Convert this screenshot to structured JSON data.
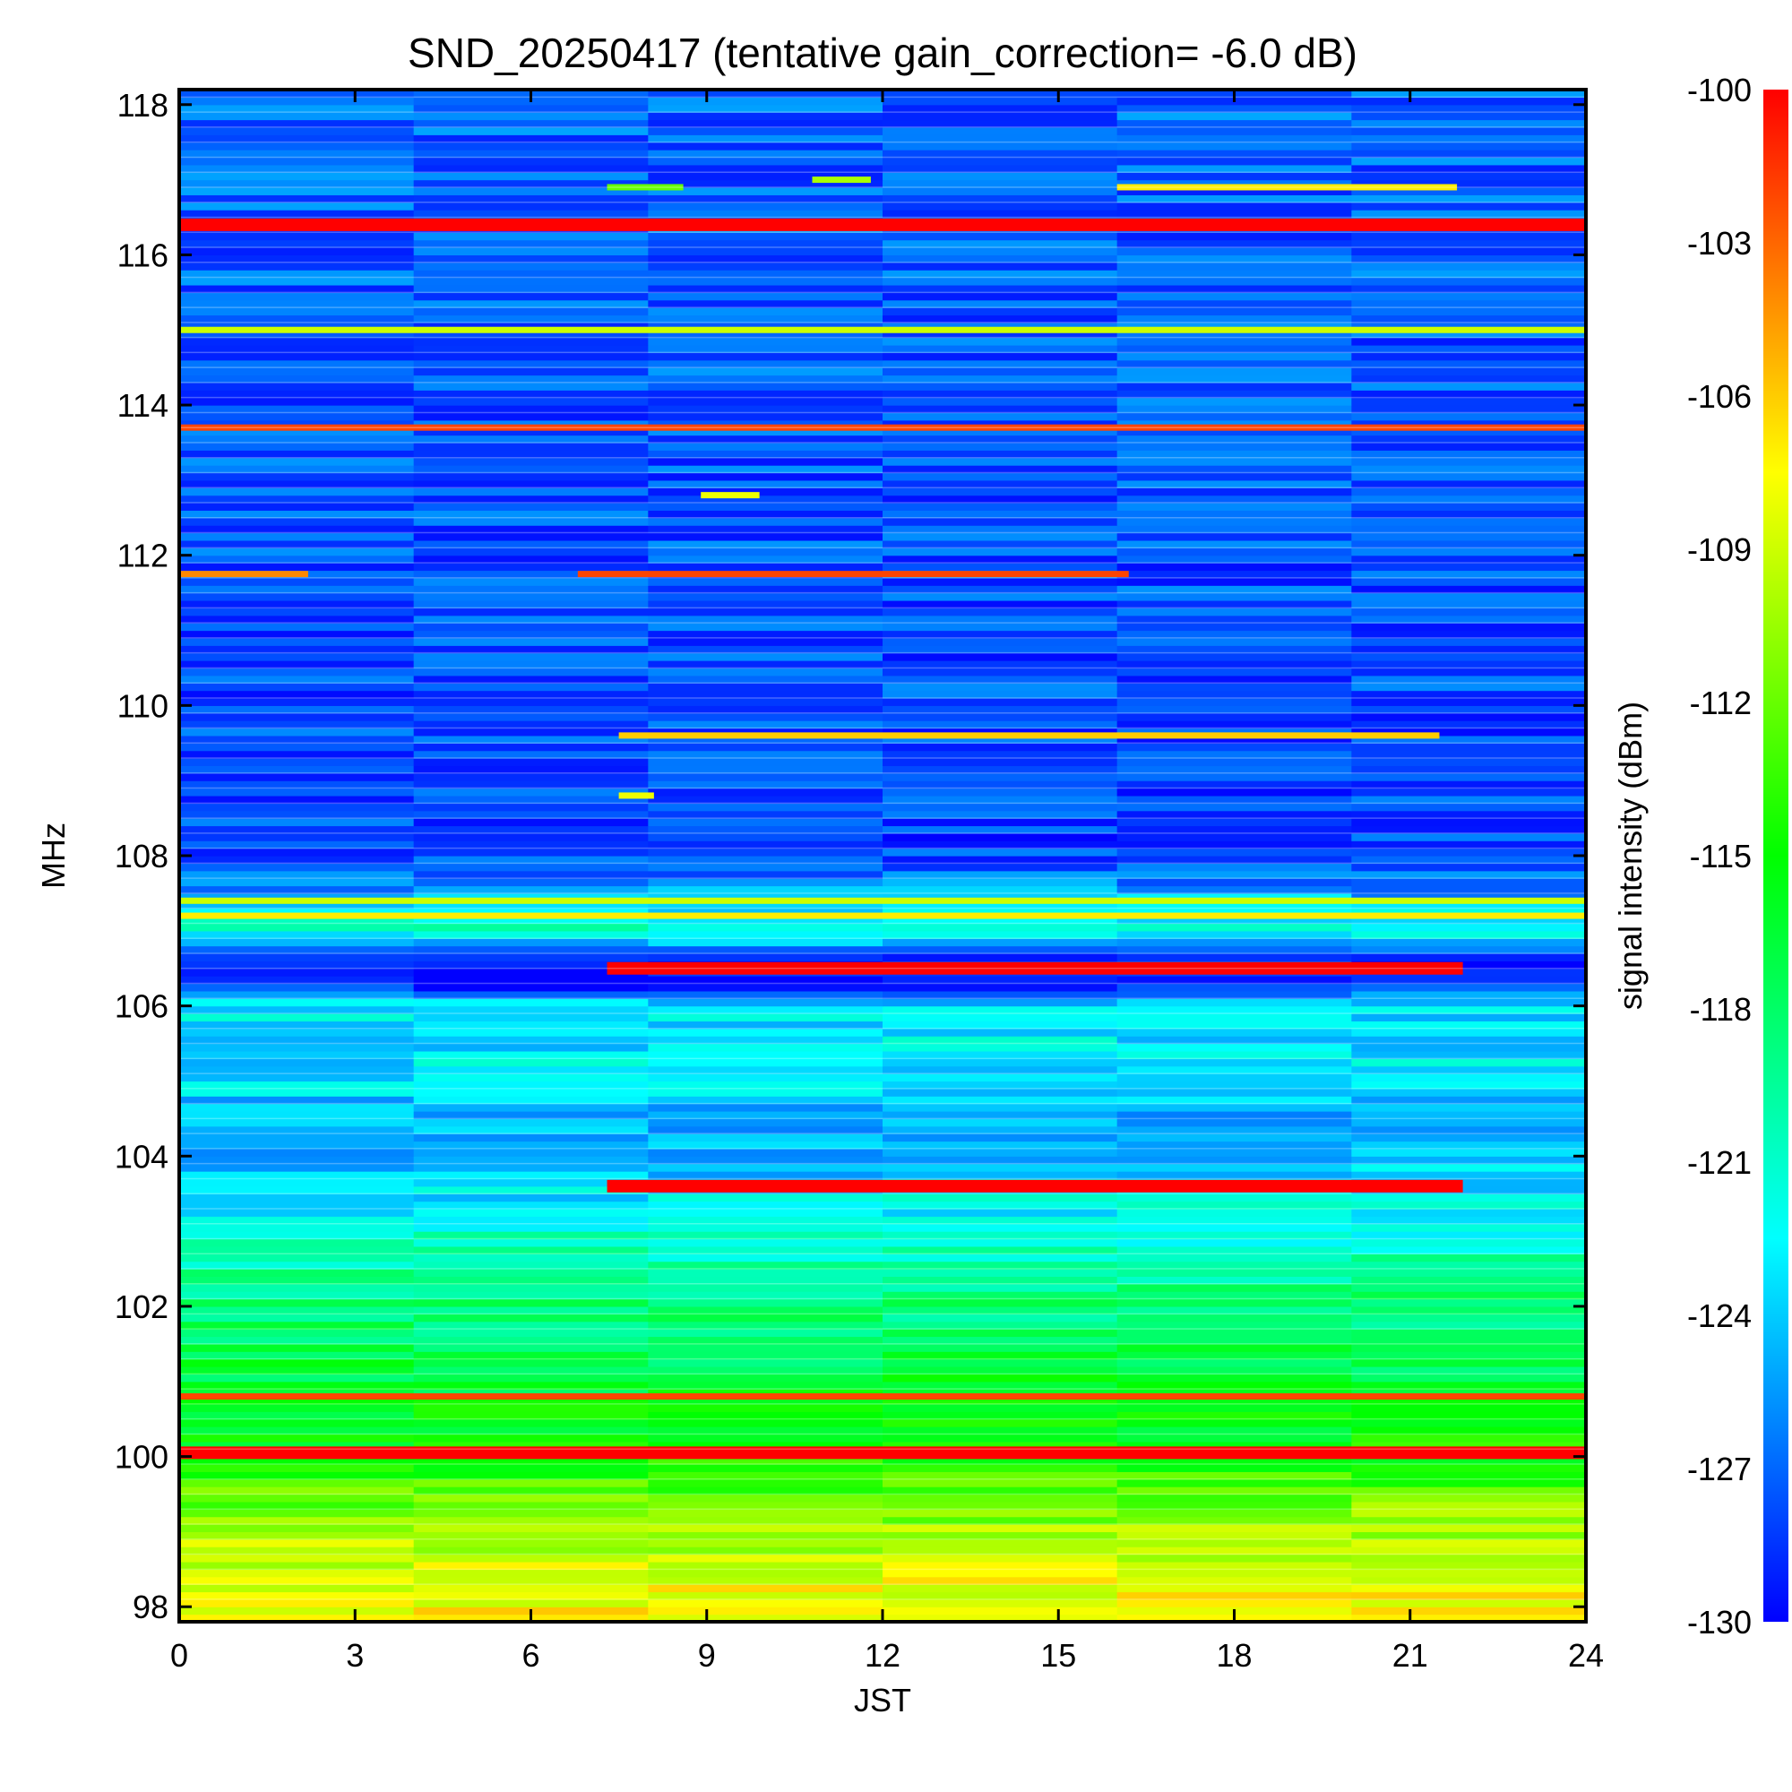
{
  "chart_data": {
    "type": "heatmap",
    "title": "SND_20250417 (tentative gain_correction= -6.0 dB)",
    "xlabel": "JST",
    "ylabel": "MHz",
    "xlim": [
      0,
      24
    ],
    "ylim": [
      97.8,
      118.2
    ],
    "x_ticks": [
      0,
      3,
      6,
      9,
      12,
      15,
      18,
      21,
      24
    ],
    "y_ticks": [
      98,
      100,
      102,
      104,
      106,
      108,
      110,
      112,
      114,
      116,
      118
    ],
    "colorbar": {
      "label": "signal intensity (dBm)",
      "range": [
        -130,
        -100
      ],
      "ticks": [
        -100,
        -103,
        -106,
        -109,
        -112,
        -115,
        -118,
        -121,
        -124,
        -127,
        -130
      ],
      "colormap": [
        "#0000ff",
        "#0080ff",
        "#00ffff",
        "#00ff80",
        "#00ff00",
        "#80ff00",
        "#ffff00",
        "#ff8000",
        "#ff0000"
      ]
    },
    "background_profile": [
      {
        "freq_mhz": 97.8,
        "dbm": -107
      },
      {
        "freq_mhz": 98.6,
        "dbm": -109
      },
      {
        "freq_mhz": 99.2,
        "dbm": -111
      },
      {
        "freq_mhz": 100.2,
        "dbm": -115
      },
      {
        "freq_mhz": 101.2,
        "dbm": -117
      },
      {
        "freq_mhz": 102.2,
        "dbm": -119
      },
      {
        "freq_mhz": 103.2,
        "dbm": -122
      },
      {
        "freq_mhz": 104.2,
        "dbm": -125
      },
      {
        "freq_mhz": 105.2,
        "dbm": -123
      },
      {
        "freq_mhz": 106.0,
        "dbm": -123
      },
      {
        "freq_mhz": 106.3,
        "dbm": -130
      },
      {
        "freq_mhz": 106.6,
        "dbm": -129
      },
      {
        "freq_mhz": 107.0,
        "dbm": -121
      },
      {
        "freq_mhz": 107.6,
        "dbm": -126
      },
      {
        "freq_mhz": 108.1,
        "dbm": -128
      },
      {
        "freq_mhz": 118.2,
        "dbm": -127
      }
    ],
    "signals": [
      {
        "freq_mhz": 116.4,
        "start_jst": 0,
        "end_jst": 24,
        "dbm": -100
      },
      {
        "freq_mhz": 115.0,
        "start_jst": 0,
        "end_jst": 24,
        "dbm": -109
      },
      {
        "freq_mhz": 113.7,
        "start_jst": 0,
        "end_jst": 24,
        "dbm": -102
      },
      {
        "freq_mhz": 116.9,
        "start_jst": 16,
        "end_jst": 21.8,
        "dbm": -107
      },
      {
        "freq_mhz": 116.9,
        "start_jst": 7.3,
        "end_jst": 8.6,
        "dbm": -112
      },
      {
        "freq_mhz": 117.0,
        "start_jst": 10.8,
        "end_jst": 11.8,
        "dbm": -110
      },
      {
        "freq_mhz": 112.8,
        "start_jst": 8.9,
        "end_jst": 9.9,
        "dbm": -108
      },
      {
        "freq_mhz": 111.75,
        "start_jst": 6.8,
        "end_jst": 16.2,
        "dbm": -102
      },
      {
        "freq_mhz": 111.75,
        "start_jst": 0,
        "end_jst": 2.2,
        "dbm": -104
      },
      {
        "freq_mhz": 109.6,
        "start_jst": 7.5,
        "end_jst": 21.5,
        "dbm": -106
      },
      {
        "freq_mhz": 108.8,
        "start_jst": 7.5,
        "end_jst": 8.1,
        "dbm": -108
      },
      {
        "freq_mhz": 107.4,
        "start_jst": 0,
        "end_jst": 24,
        "dbm": -109
      },
      {
        "freq_mhz": 107.2,
        "start_jst": 0,
        "end_jst": 24,
        "dbm": -107
      },
      {
        "freq_mhz": 106.5,
        "start_jst": 7.3,
        "end_jst": 21.9,
        "dbm": -100
      },
      {
        "freq_mhz": 103.6,
        "start_jst": 7.3,
        "end_jst": 21.9,
        "dbm": -100
      },
      {
        "freq_mhz": 100.8,
        "start_jst": 0,
        "end_jst": 24,
        "dbm": -102
      },
      {
        "freq_mhz": 100.05,
        "start_jst": 0,
        "end_jst": 24,
        "dbm": -100
      }
    ]
  }
}
